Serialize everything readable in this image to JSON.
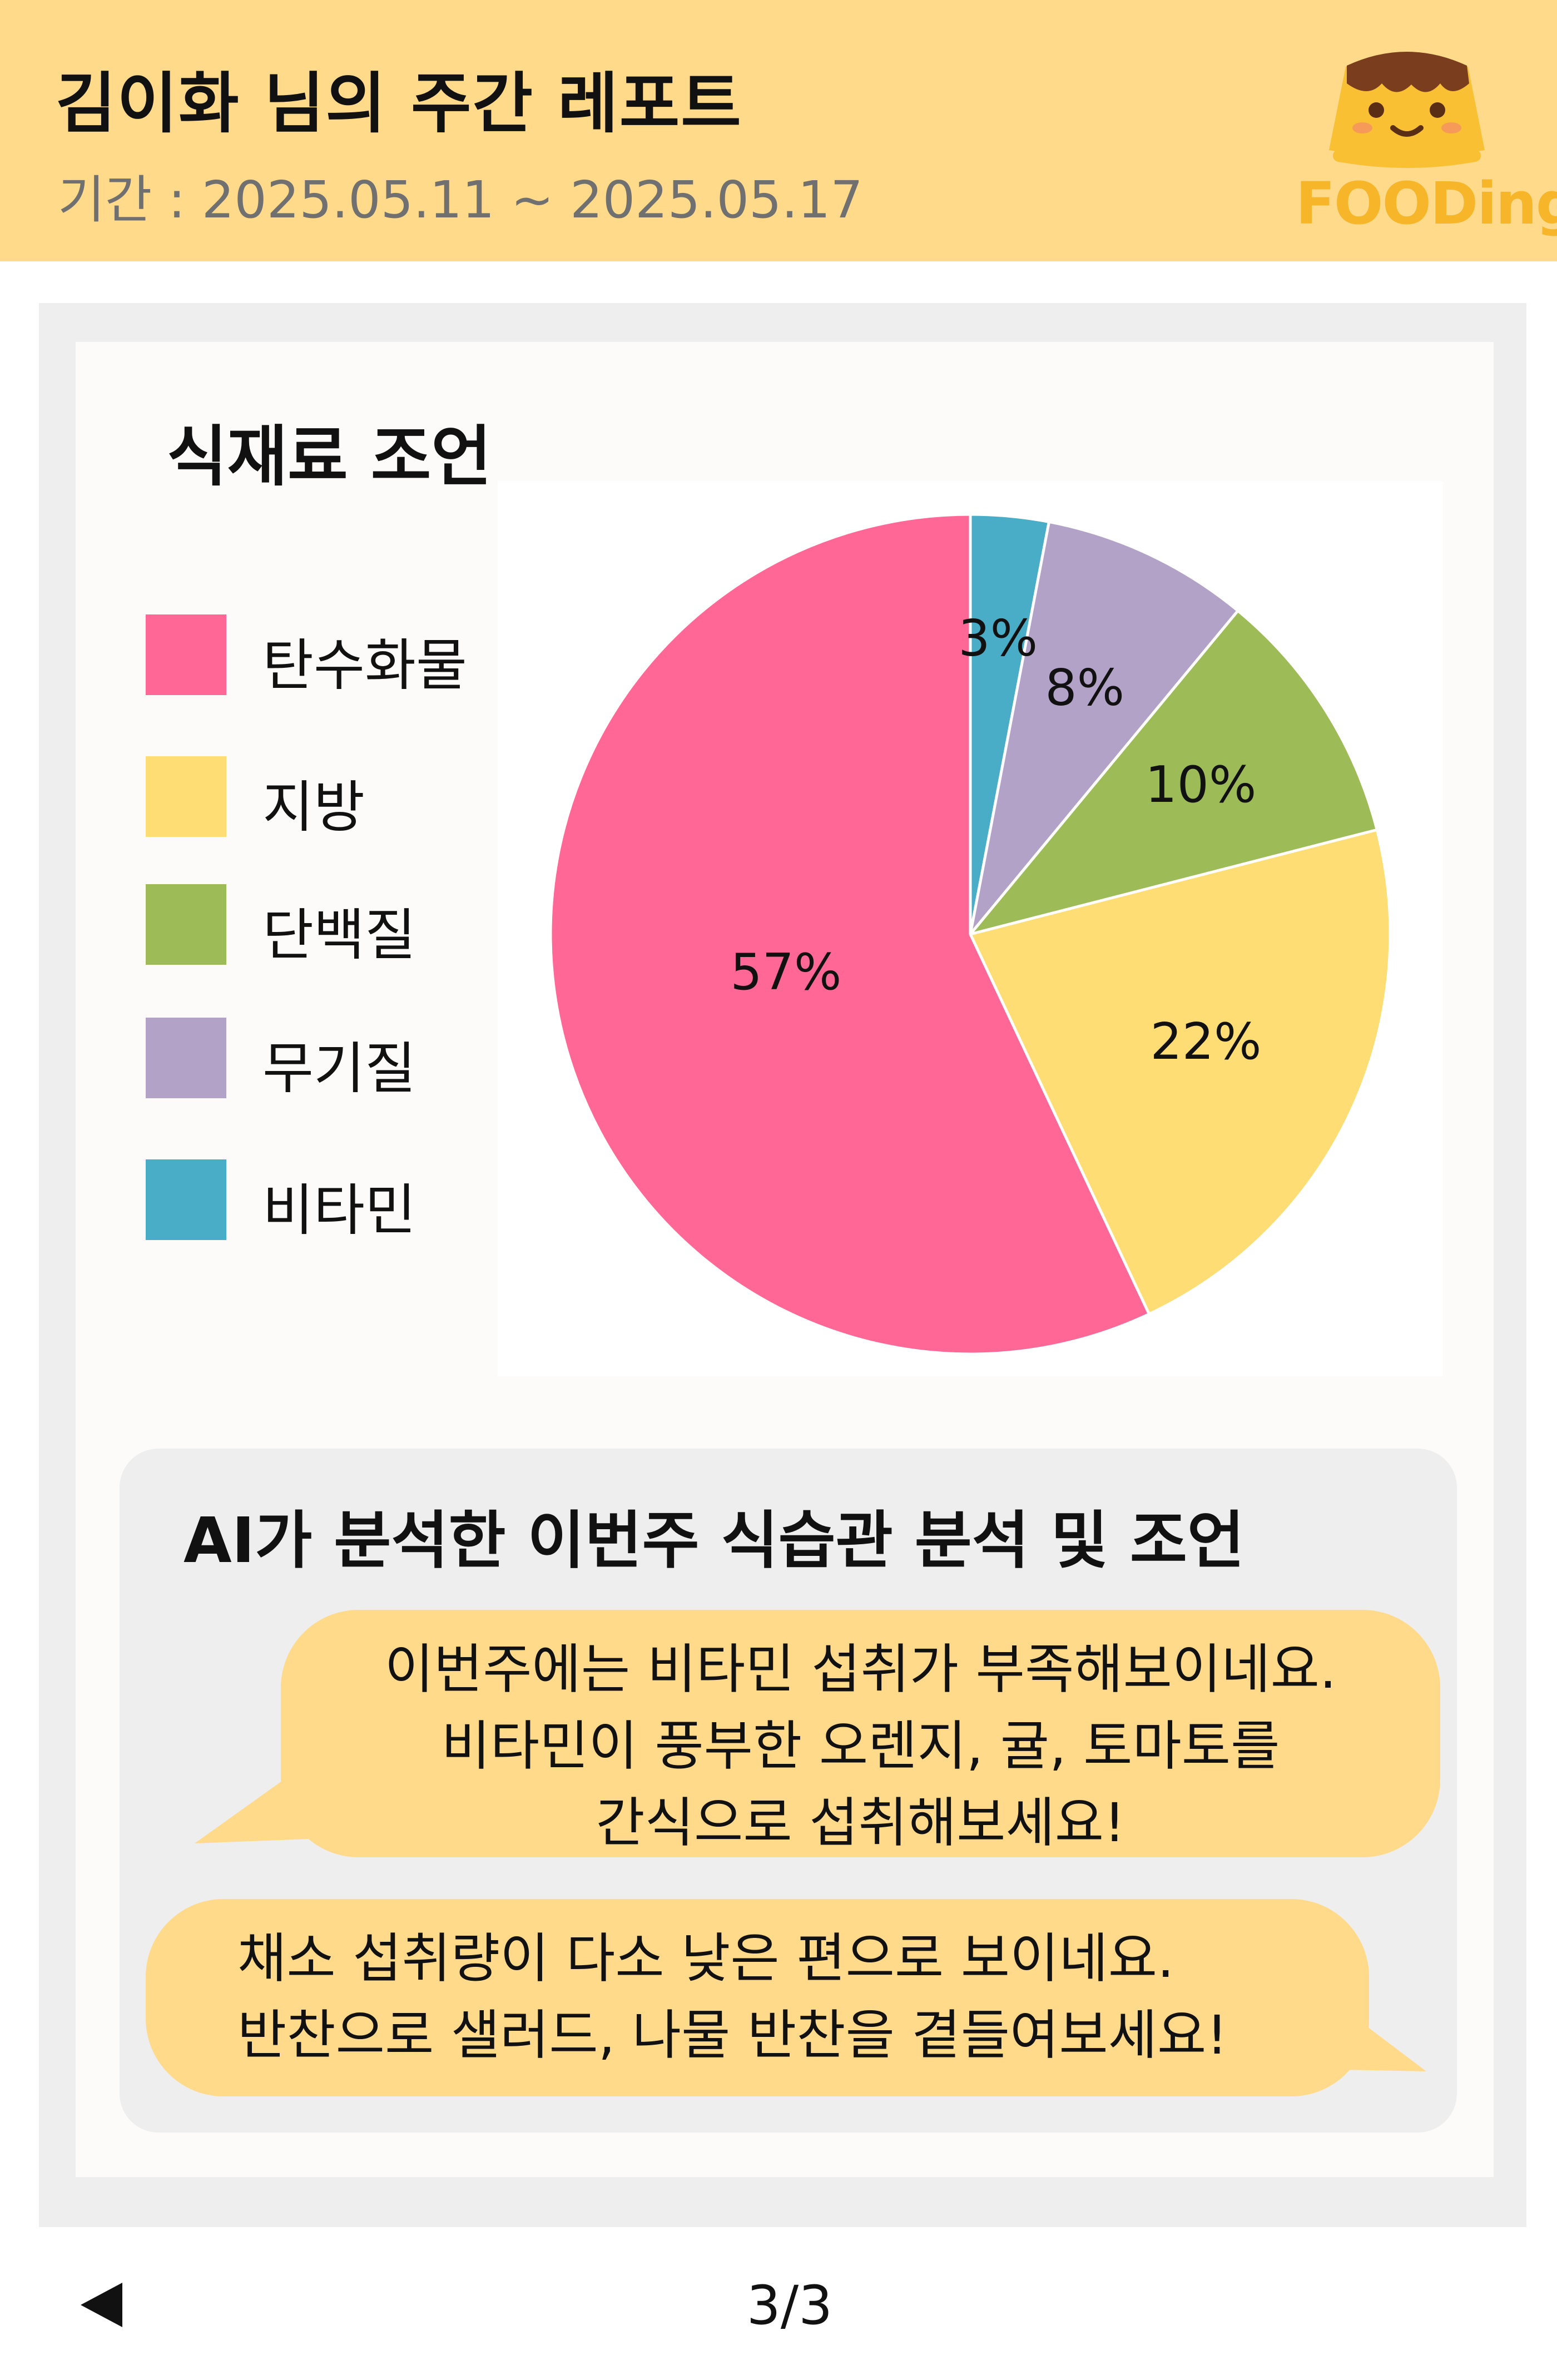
{
  "header": {
    "title": "김이화 님의 주간 레포트",
    "period": "기간 : 2025.05.11 ~ 2025.05.17",
    "logo_text": "FOODing"
  },
  "section": {
    "title": "식재료 조언"
  },
  "legend": [
    {
      "label": "탄수화물",
      "color": "#FF6797"
    },
    {
      "label": "지방",
      "color": "#FDDD74"
    },
    {
      "label": "단백질",
      "color": "#9DBB56"
    },
    {
      "label": "무기질",
      "color": "#B3A2C8"
    },
    {
      "label": "비타민",
      "color": "#4AADC7"
    }
  ],
  "chart_data": {
    "type": "pie",
    "title": "",
    "slices": [
      {
        "name": "비타민",
        "value": 3,
        "label": "3%",
        "color": "#4AADC7"
      },
      {
        "name": "무기질",
        "value": 8,
        "label": "8%",
        "color": "#B3A2C8"
      },
      {
        "name": "단백질",
        "value": 10,
        "label": "10%",
        "color": "#9DBB56"
      },
      {
        "name": "지방",
        "value": 22,
        "label": "22%",
        "color": "#FDDD74"
      },
      {
        "name": "탄수화물",
        "value": 57,
        "label": "57%",
        "color": "#FF6797"
      }
    ],
    "legend_position": "left"
  },
  "advice": {
    "title": "AI가 분석한 이번주 식습관 분석 및 조언",
    "bubble1": [
      "이번주에는 비타민 섭취가 부족해보이네요.",
      "비타민이 풍부한 오렌지, 귤, 토마토를",
      "간식으로 섭취해보세요!"
    ],
    "bubble2": [
      "채소 섭취량이 다소 낮은 편으로 보이네요.",
      "반찬으로 샐러드, 나물 반찬을 곁들여보세요!"
    ]
  },
  "footer": {
    "page": "3/3"
  }
}
